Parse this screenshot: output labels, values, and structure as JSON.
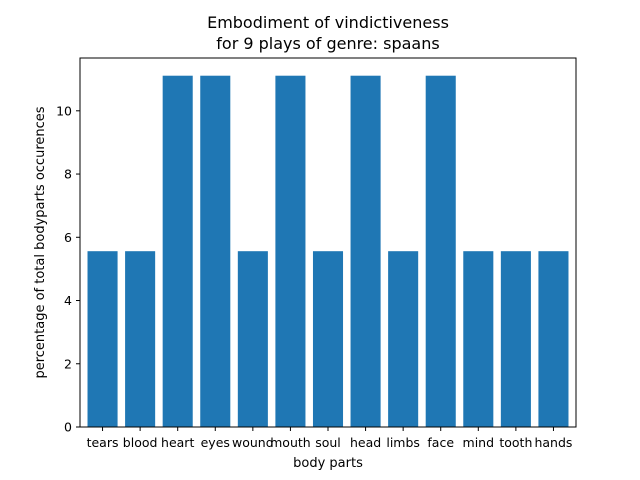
{
  "chart_data": {
    "type": "bar",
    "title_lines": [
      "Embodiment of vindictiveness",
      "for 9 plays of genre: spaans"
    ],
    "xlabel": "body parts",
    "ylabel": "percentage of total bodyparts occurences",
    "categories": [
      "tears",
      "blood",
      "heart",
      "eyes",
      "wound",
      "mouth",
      "soul",
      "head",
      "limbs",
      "face",
      "mind",
      "tooth",
      "hands"
    ],
    "values": [
      5.56,
      5.56,
      11.11,
      11.11,
      5.56,
      11.11,
      5.56,
      11.11,
      5.56,
      11.11,
      5.56,
      5.56,
      5.56
    ],
    "ylim": [
      0,
      11.67
    ],
    "yticks": [
      0,
      2,
      4,
      6,
      8,
      10
    ],
    "bar_color": "#1f77b4",
    "grid": false
  }
}
